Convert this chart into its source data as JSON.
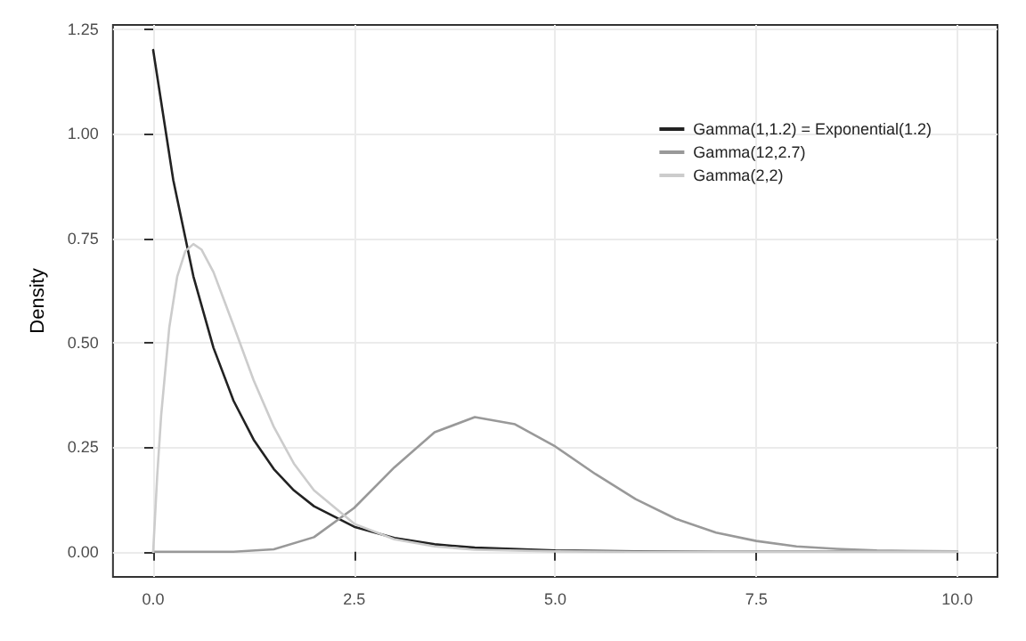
{
  "chart_data": {
    "type": "line",
    "ylabel": "Density",
    "xlim": [
      -0.5,
      10.5
    ],
    "ylim": [
      -0.06,
      1.26
    ],
    "xticks": [
      {
        "value": 0,
        "label": "0.0"
      },
      2.5,
      {
        "value": 5,
        "label": "5.0"
      },
      7.5,
      {
        "value": 10,
        "label": "10.0"
      }
    ],
    "yticks": [
      {
        "value": 0,
        "label": "0.00"
      },
      0.25,
      {
        "value": 0.5,
        "label": "0.50"
      },
      0.75,
      {
        "value": 1,
        "label": "1.00"
      },
      1.25
    ],
    "grid": true,
    "legend": "top right",
    "marker": "none",
    "line_style": "solid",
    "series": [
      {
        "name": "Gamma(1,1.2) = Exponential(1.2)",
        "color": "#222222",
        "x": [
          0,
          0.25,
          0.5,
          0.75,
          1,
          1.25,
          1.5,
          1.75,
          2,
          2.5,
          3,
          3.5,
          4,
          5,
          6,
          7,
          8,
          10
        ],
        "values": [
          1.2,
          0.889,
          0.659,
          0.488,
          0.361,
          0.268,
          0.198,
          0.147,
          0.109,
          0.06,
          0.033,
          0.018,
          0.01,
          0.003,
          0.001,
          0,
          0,
          0
        ]
      },
      {
        "name": "Gamma(12,2.7)",
        "color": "#999999",
        "x": [
          0,
          0.5,
          1,
          1.5,
          2,
          2.5,
          3,
          3.5,
          4,
          4.5,
          5,
          5.5,
          6,
          6.5,
          7,
          7.5,
          8,
          8.5,
          9,
          10
        ],
        "values": [
          0,
          0,
          0,
          0.006,
          0.035,
          0.105,
          0.202,
          0.286,
          0.322,
          0.305,
          0.252,
          0.186,
          0.126,
          0.079,
          0.046,
          0.026,
          0.013,
          0.007,
          0.003,
          0.001
        ]
      },
      {
        "name": "Gamma(2,2)",
        "color": "#cccccc",
        "x": [
          0,
          0.05,
          0.1,
          0.2,
          0.3,
          0.4,
          0.5,
          0.6,
          0.75,
          1,
          1.25,
          1.5,
          1.75,
          2,
          2.5,
          3,
          3.5,
          4,
          5,
          6,
          10
        ],
        "values": [
          0,
          0.181,
          0.328,
          0.536,
          0.659,
          0.719,
          0.736,
          0.723,
          0.669,
          0.541,
          0.41,
          0.299,
          0.211,
          0.147,
          0.067,
          0.03,
          0.013,
          0.005,
          0.001,
          0,
          0
        ]
      }
    ]
  }
}
